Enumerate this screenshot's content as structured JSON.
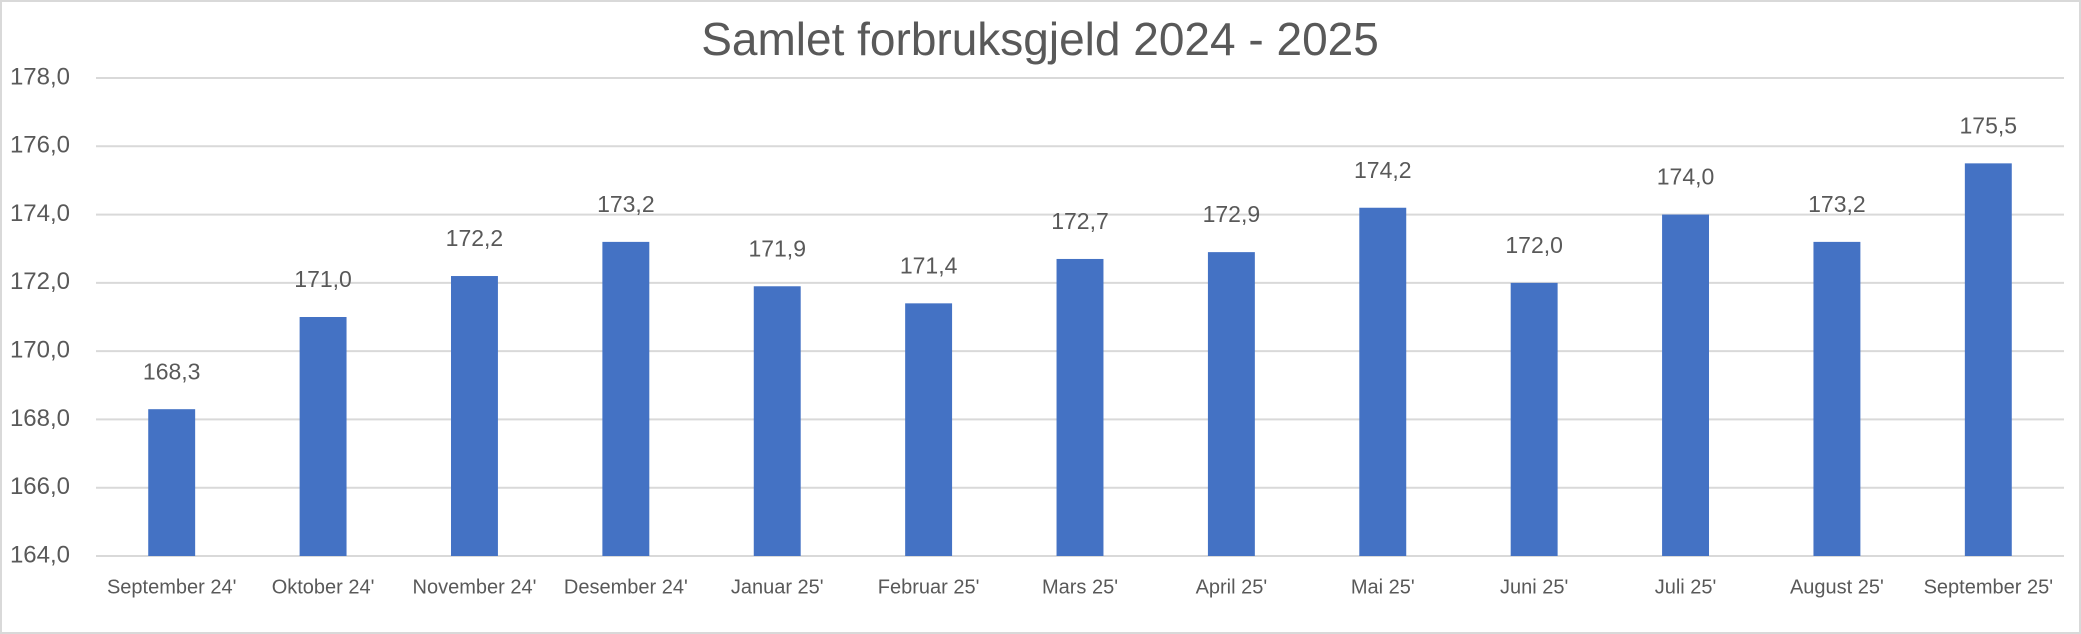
{
  "chart_data": {
    "type": "bar",
    "title": "Samlet forbruksgjeld 2024 - 2025",
    "categories": [
      "September 24'",
      "Oktober 24'",
      "November 24'",
      "Desember 24'",
      "Januar 25'",
      "Februar 25'",
      "Mars 25'",
      "April 25'",
      "Mai 25'",
      "Juni 25'",
      "Juli 25'",
      "August 25'",
      "September 25'"
    ],
    "values": [
      168.3,
      171.0,
      172.2,
      173.2,
      171.9,
      171.4,
      172.7,
      172.9,
      174.2,
      172.0,
      174.0,
      173.2,
      175.5
    ],
    "value_labels": [
      "168,3",
      "171,0",
      "172,2",
      "173,2",
      "171,9",
      "171,4",
      "172,7",
      "172,9",
      "174,2",
      "172,0",
      "174,0",
      "173,2",
      "175,5"
    ],
    "color": "#4472c4",
    "ylim": [
      164,
      178
    ],
    "yticks": [
      {
        "value": 164,
        "label": "164,0"
      },
      {
        "value": 166,
        "label": "166,0"
      },
      {
        "value": 168,
        "label": "168,0"
      },
      {
        "value": 170,
        "label": "170,0"
      },
      {
        "value": 172,
        "label": "172,0"
      },
      {
        "value": 174,
        "label": "174,0"
      },
      {
        "value": 176,
        "label": "176,0"
      },
      {
        "value": 178,
        "label": "178,0"
      }
    ],
    "grid": true
  }
}
